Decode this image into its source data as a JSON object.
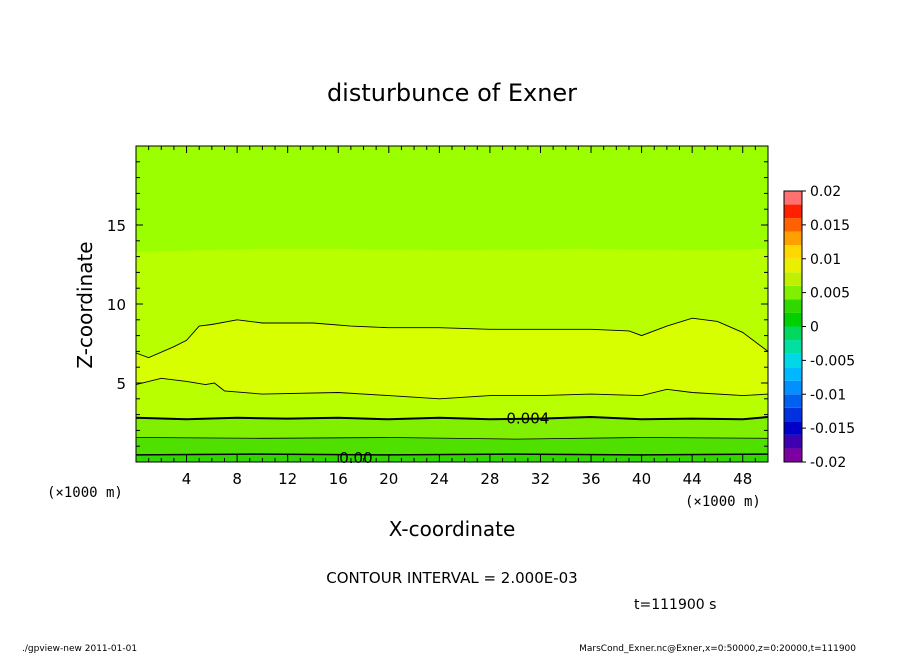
{
  "chart_data": {
    "type": "contour",
    "title": "disturbunce of Exner",
    "xlabel": "X-coordinate",
    "ylabel": "Z-coordinate",
    "x_unit_label": "(×1000 m)",
    "y_unit_label": "(×1000 m)",
    "xlim": [
      0,
      50
    ],
    "ylim": [
      0,
      20
    ],
    "x_ticks": [
      "4",
      "8",
      "12",
      "16",
      "20",
      "24",
      "28",
      "32",
      "36",
      "40",
      "44",
      "48"
    ],
    "y_ticks": [
      "5",
      "10",
      "15"
    ],
    "contour_interval_text": "CONTOUR INTERVAL = 2.000E-03",
    "time_text": "t=111900 s",
    "contour_labels": [
      "0.004",
      "0.00"
    ],
    "colorbar": {
      "labels": [
        "0.02",
        "0.015",
        "0.01",
        "0.005",
        "0",
        "-0.005",
        "-0.01",
        "-0.015",
        "-0.02"
      ],
      "levels": [
        -0.02,
        -0.018,
        -0.016,
        -0.014,
        -0.012,
        -0.01,
        -0.008,
        -0.006,
        -0.004,
        -0.002,
        0,
        0.002,
        0.004,
        0.006,
        0.008,
        0.01,
        0.012,
        0.014,
        0.016,
        0.018,
        0.02
      ],
      "colors": [
        "#7f00a0",
        "#3f00b0",
        "#0000c8",
        "#0030e0",
        "#0060f0",
        "#0090ff",
        "#00b8ff",
        "#00d8e8",
        "#00e0a0",
        "#00d860",
        "#00d000",
        "#30d800",
        "#80f000",
        "#c0f000",
        "#e8f000",
        "#ffd800",
        "#ffa000",
        "#ff6000",
        "#ff2000",
        "#ff7070"
      ]
    },
    "bands": [
      {
        "range": "0.000–0.002",
        "color": "#30d800"
      },
      {
        "range": "0.002–0.004",
        "color": "#50e000"
      },
      {
        "range": "0.004–0.006",
        "color": "#80f000"
      },
      {
        "range": "0.006–0.008",
        "color": "#9cff00"
      },
      {
        "range": "0.008–0.010",
        "color": "#b8ff00"
      },
      {
        "range": "0.010–0.012",
        "color": "#d8ff00"
      }
    ]
  },
  "footer": {
    "left": "./gpview-new   2011-01-01",
    "right": "MarsCond_Exner.nc@Exner,x=0:50000,z=0:20000,t=111900"
  }
}
